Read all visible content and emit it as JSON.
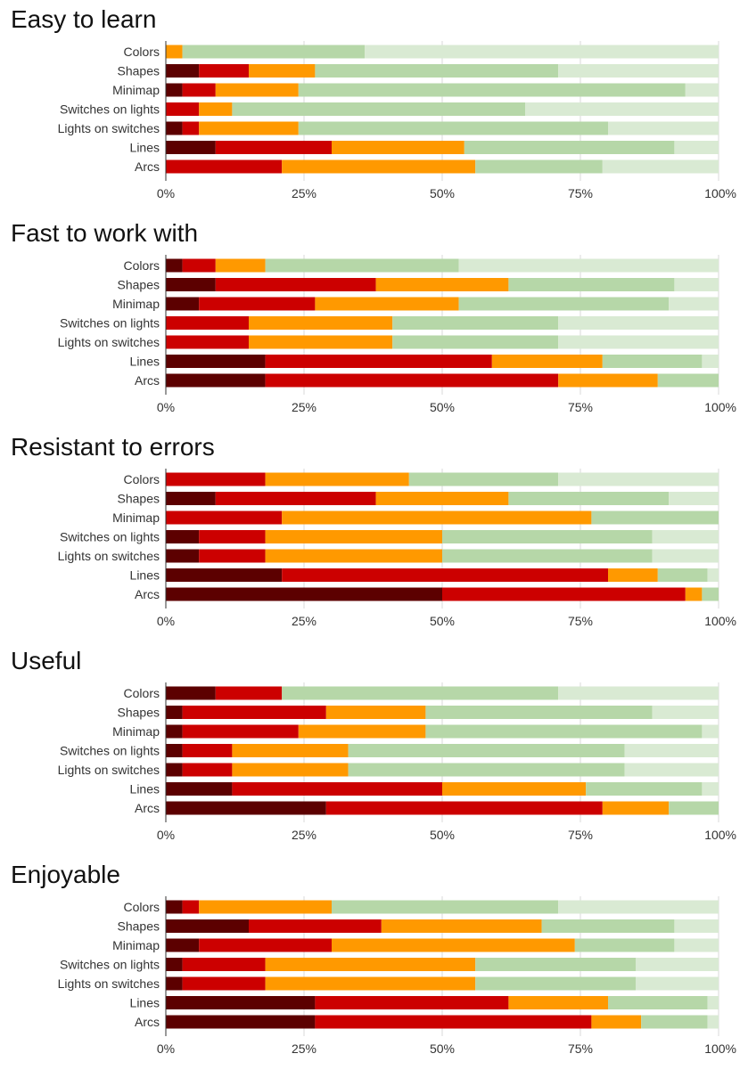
{
  "chart_data": [
    {
      "type": "bar",
      "stacked": "horizontal-percent",
      "title": "Easy to learn",
      "categories": [
        "Colors",
        "Shapes",
        "Minimap",
        "Switches on lights",
        "Lights on switches",
        "Lines",
        "Arcs"
      ],
      "series": [
        {
          "values": [
            0,
            6,
            3,
            0,
            3,
            9,
            0
          ]
        },
        {
          "values": [
            0,
            9,
            6,
            6,
            3,
            21,
            21
          ]
        },
        {
          "values": [
            3,
            12,
            15,
            6,
            18,
            24,
            35
          ]
        },
        {
          "values": [
            33,
            44,
            70,
            53,
            56,
            38,
            23
          ]
        },
        {
          "values": [
            64,
            29,
            6,
            35,
            20,
            8,
            21
          ]
        }
      ],
      "xlim": [
        0,
        100
      ],
      "xticks": [
        "0%",
        "25%",
        "50%",
        "75%",
        "100%"
      ],
      "grid": "vertical",
      "legend": "none"
    },
    {
      "type": "bar",
      "stacked": "horizontal-percent",
      "title": "Fast to work with",
      "categories": [
        "Colors",
        "Shapes",
        "Minimap",
        "Switches on lights",
        "Lights on switches",
        "Lines",
        "Arcs"
      ],
      "series": [
        {
          "values": [
            3,
            9,
            6,
            0,
            0,
            18,
            18
          ]
        },
        {
          "values": [
            6,
            29,
            21,
            15,
            15,
            41,
            53
          ]
        },
        {
          "values": [
            9,
            24,
            26,
            26,
            26,
            20,
            18
          ]
        },
        {
          "values": [
            35,
            30,
            38,
            30,
            30,
            18,
            11
          ]
        },
        {
          "values": [
            47,
            8,
            9,
            29,
            29,
            3,
            0
          ]
        }
      ],
      "xlim": [
        0,
        100
      ],
      "xticks": [
        "0%",
        "25%",
        "50%",
        "75%",
        "100%"
      ],
      "grid": "vertical",
      "legend": "none"
    },
    {
      "type": "bar",
      "stacked": "horizontal-percent",
      "title": "Resistant to errors",
      "categories": [
        "Colors",
        "Shapes",
        "Minimap",
        "Switches on lights",
        "Lights on switches",
        "Lines",
        "Arcs"
      ],
      "series": [
        {
          "values": [
            0,
            9,
            0,
            6,
            6,
            21,
            50
          ]
        },
        {
          "values": [
            18,
            29,
            21,
            12,
            12,
            59,
            44
          ]
        },
        {
          "values": [
            26,
            24,
            56,
            32,
            32,
            9,
            3
          ]
        },
        {
          "values": [
            27,
            29,
            23,
            38,
            38,
            9,
            3
          ]
        },
        {
          "values": [
            29,
            9,
            0,
            12,
            12,
            2,
            0
          ]
        }
      ],
      "xlim": [
        0,
        100
      ],
      "xticks": [
        "0%",
        "25%",
        "50%",
        "75%",
        "100%"
      ],
      "grid": "vertical",
      "legend": "none"
    },
    {
      "type": "bar",
      "stacked": "horizontal-percent",
      "title": "Useful",
      "categories": [
        "Colors",
        "Shapes",
        "Minimap",
        "Switches on lights",
        "Lights on switches",
        "Lines",
        "Arcs"
      ],
      "series": [
        {
          "values": [
            9,
            3,
            3,
            3,
            3,
            12,
            29
          ]
        },
        {
          "values": [
            12,
            26,
            21,
            9,
            9,
            38,
            50
          ]
        },
        {
          "values": [
            0,
            18,
            23,
            21,
            21,
            26,
            12
          ]
        },
        {
          "values": [
            50,
            41,
            50,
            50,
            50,
            21,
            9
          ]
        },
        {
          "values": [
            29,
            12,
            3,
            17,
            17,
            3,
            0
          ]
        }
      ],
      "xlim": [
        0,
        100
      ],
      "xticks": [
        "0%",
        "25%",
        "50%",
        "75%",
        "100%"
      ],
      "grid": "vertical",
      "legend": "none"
    },
    {
      "type": "bar",
      "stacked": "horizontal-percent",
      "title": "Enjoyable",
      "categories": [
        "Colors",
        "Shapes",
        "Minimap",
        "Switches on lights",
        "Lights on switches",
        "Lines",
        "Arcs"
      ],
      "series": [
        {
          "values": [
            3,
            15,
            6,
            3,
            3,
            27,
            27
          ]
        },
        {
          "values": [
            3,
            24,
            24,
            15,
            15,
            35,
            50
          ]
        },
        {
          "values": [
            24,
            29,
            44,
            38,
            38,
            18,
            9
          ]
        },
        {
          "values": [
            41,
            24,
            18,
            29,
            29,
            18,
            12
          ]
        },
        {
          "values": [
            29,
            8,
            8,
            15,
            15,
            2,
            2
          ]
        }
      ],
      "xlim": [
        0,
        100
      ],
      "xticks": [
        "0%",
        "25%",
        "50%",
        "75%",
        "100%"
      ],
      "grid": "vertical",
      "legend": "none"
    }
  ],
  "colors": [
    "#5c0000",
    "#cc0000",
    "#ff9900",
    "#b6d7a8",
    "#d9ead3"
  ]
}
